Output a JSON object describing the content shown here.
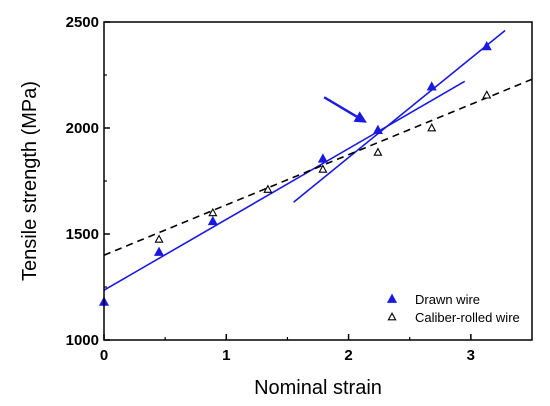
{
  "chart_data": {
    "type": "scatter",
    "xlabel": "Nominal strain",
    "ylabel": "Tensile strength (MPa)",
    "xlim": [
      0,
      3.5
    ],
    "ylim": [
      1000,
      2500
    ],
    "xticks": [
      0,
      1,
      2,
      3
    ],
    "yticks": [
      1000,
      1500,
      2000,
      2500
    ],
    "grid": false,
    "legend_position": "bottom-right",
    "series": [
      {
        "name": "Drawn wire",
        "marker": "filled-triangle",
        "color": "#1a1adf",
        "x": [
          0,
          0.45,
          0.89,
          1.79,
          2.24,
          2.68,
          3.13
        ],
        "y": [
          1180,
          1415,
          1560,
          1855,
          1990,
          2195,
          2385
        ]
      },
      {
        "name": "Caliber-rolled wire",
        "marker": "open-triangle",
        "color": "#000000",
        "x": [
          0.45,
          0.89,
          1.34,
          1.79,
          2.24,
          2.68,
          3.13
        ],
        "y": [
          1475,
          1600,
          1710,
          1805,
          1885,
          2000,
          2155
        ]
      }
    ],
    "fit_lines": [
      {
        "series": "Drawn wire",
        "style": "solid",
        "color": "#1a1adf",
        "x": [
          0,
          2.95
        ],
        "y": [
          1235,
          2220
        ]
      },
      {
        "series": "Drawn wire",
        "style": "solid",
        "color": "#1a1adf",
        "x": [
          1.55,
          3.28
        ],
        "y": [
          1650,
          2460
        ]
      },
      {
        "series": "Caliber-rolled wire",
        "style": "dashed",
        "color": "#000000",
        "x": [
          0,
          3.5
        ],
        "y": [
          1400,
          2230
        ]
      }
    ],
    "annotations": [
      {
        "type": "arrow",
        "color": "#1a1adf",
        "from": [
          1.8,
          2145
        ],
        "to": [
          2.15,
          2025
        ]
      }
    ]
  }
}
